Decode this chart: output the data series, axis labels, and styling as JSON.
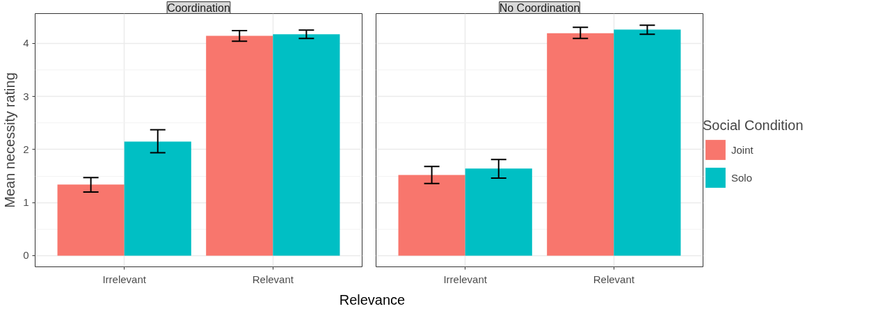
{
  "chart_data": [
    {
      "type": "bar",
      "title": "Coordination",
      "xlabel": "Relevance",
      "ylabel": "Mean necessity rating",
      "categories": [
        "Irrelevant",
        "Relevant"
      ],
      "ylim": [
        -0.21,
        4.56
      ],
      "yticks": [
        0,
        1,
        2,
        3,
        4
      ],
      "grid": true,
      "series": [
        {
          "color": "#f8766d",
          "values": [
            1.34,
            4.14
          ],
          "errors": [
            [
              1.2,
              1.47
            ],
            [
              4.04,
              4.24
            ]
          ]
        },
        {
          "color": "#00bfc4",
          "values": [
            2.15,
            4.17
          ],
          "errors": [
            [
              1.94,
              2.37
            ],
            [
              4.09,
              4.25
            ]
          ]
        }
      ]
    },
    {
      "type": "bar",
      "title": "No Coordination",
      "legend_title": "Social Condition",
      "legend": "right",
      "tick_labels": "x",
      "categories": [
        "Irrelevant",
        "Relevant"
      ],
      "ylim": [
        -0.21,
        4.56
      ],
      "yticks": [
        0,
        1,
        2,
        3,
        4
      ],
      "grid": true,
      "series": [
        {
          "name": "Joint",
          "color": "#f8766d",
          "values": [
            1.52,
            4.19
          ],
          "errors": [
            [
              1.36,
              1.68
            ],
            [
              4.09,
              4.3
            ]
          ]
        },
        {
          "name": "Solo",
          "color": "#00bfc4",
          "values": [
            1.64,
            4.26
          ],
          "errors": [
            [
              1.46,
              1.81
            ],
            [
              4.17,
              4.34
            ]
          ]
        }
      ]
    }
  ]
}
